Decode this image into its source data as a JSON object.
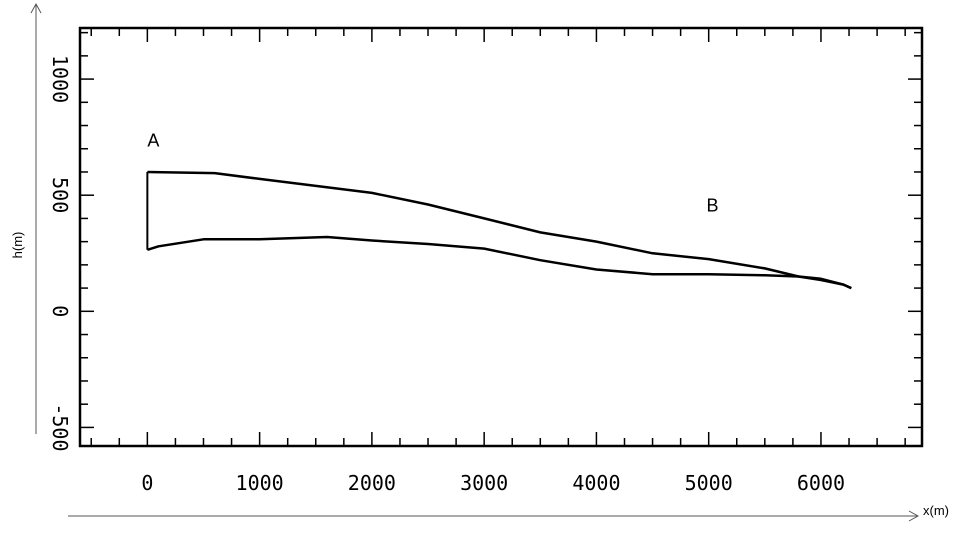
{
  "chart_data": {
    "type": "line",
    "xlabel": "x(m)",
    "ylabel": "h(m)",
    "xlim": [
      -600,
      6900
    ],
    "ylim": [
      -580,
      1220
    ],
    "x_ticks": [
      "0",
      "1000",
      "2000",
      "3000",
      "4000",
      "5000",
      "6000"
    ],
    "y_ticks": [
      "-500",
      "0",
      "500",
      "1000"
    ],
    "grid": false,
    "legend": "none",
    "annotations": [
      {
        "text": "A",
        "x": 0,
        "y": 710
      },
      {
        "text": "B",
        "x": 4980,
        "y": 430
      }
    ],
    "series": [
      {
        "x": [
          0,
          600,
          1000,
          1500,
          2000,
          2500,
          3000,
          3500,
          4000,
          4500,
          5000,
          5500,
          5800,
          6000,
          6200,
          6270
        ],
        "y": [
          600,
          595,
          570,
          540,
          510,
          460,
          400,
          340,
          300,
          250,
          225,
          185,
          150,
          135,
          115,
          100
        ]
      },
      {
        "x": [
          0,
          100,
          500,
          1000,
          1600,
          2000,
          2500,
          3000,
          3500,
          4000,
          4500,
          5000,
          5500,
          5800,
          6000,
          6200,
          6270
        ],
        "y": [
          265,
          280,
          310,
          310,
          320,
          305,
          290,
          270,
          220,
          180,
          160,
          160,
          155,
          150,
          140,
          115,
          100
        ]
      }
    ]
  }
}
